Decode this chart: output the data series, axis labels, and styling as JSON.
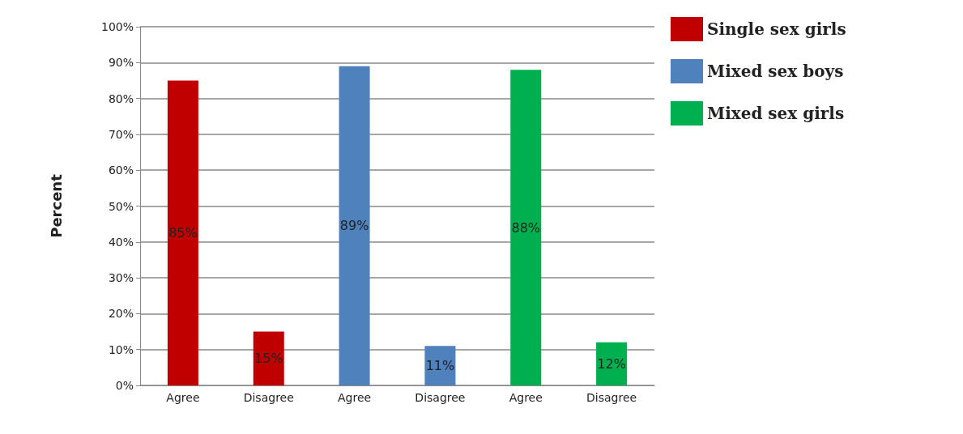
{
  "chart_data": {
    "type": "bar",
    "ylabel": "Percent",
    "categories": [
      "Agree",
      "Disagree",
      "Agree",
      "Disagree",
      "Agree",
      "Disagree"
    ],
    "series": [
      {
        "name": "Single sex girls",
        "color": "#c00000",
        "values": [
          85,
          15,
          null,
          null,
          null,
          null
        ],
        "value_labels": [
          "85%",
          "15%",
          null,
          null,
          null,
          null
        ]
      },
      {
        "name": "Mixed sex boys",
        "color": "#4f81bd",
        "values": [
          null,
          null,
          89,
          11,
          null,
          null
        ],
        "value_labels": [
          null,
          null,
          "89%",
          "11%",
          null,
          null
        ]
      },
      {
        "name": "Mixed sex girls",
        "color": "#00b050",
        "values": [
          null,
          null,
          null,
          null,
          88,
          12
        ],
        "value_labels": [
          null,
          null,
          null,
          null,
          "88%",
          "12%"
        ]
      }
    ],
    "ylim": [
      0,
      100
    ],
    "yticks": [
      {
        "value": 0,
        "label": "0%"
      },
      {
        "value": 10,
        "label": "10%"
      },
      {
        "value": 20,
        "label": "20%"
      },
      {
        "value": 30,
        "label": "30%"
      },
      {
        "value": 40,
        "label": "40%"
      },
      {
        "value": 50,
        "label": "50%"
      },
      {
        "value": 60,
        "label": "60%"
      },
      {
        "value": 70,
        "label": "70%"
      },
      {
        "value": 80,
        "label": "80%"
      },
      {
        "value": 90,
        "label": "90%"
      },
      {
        "value": 100,
        "label": "100%"
      }
    ],
    "grid": "y",
    "legend": "top right"
  }
}
